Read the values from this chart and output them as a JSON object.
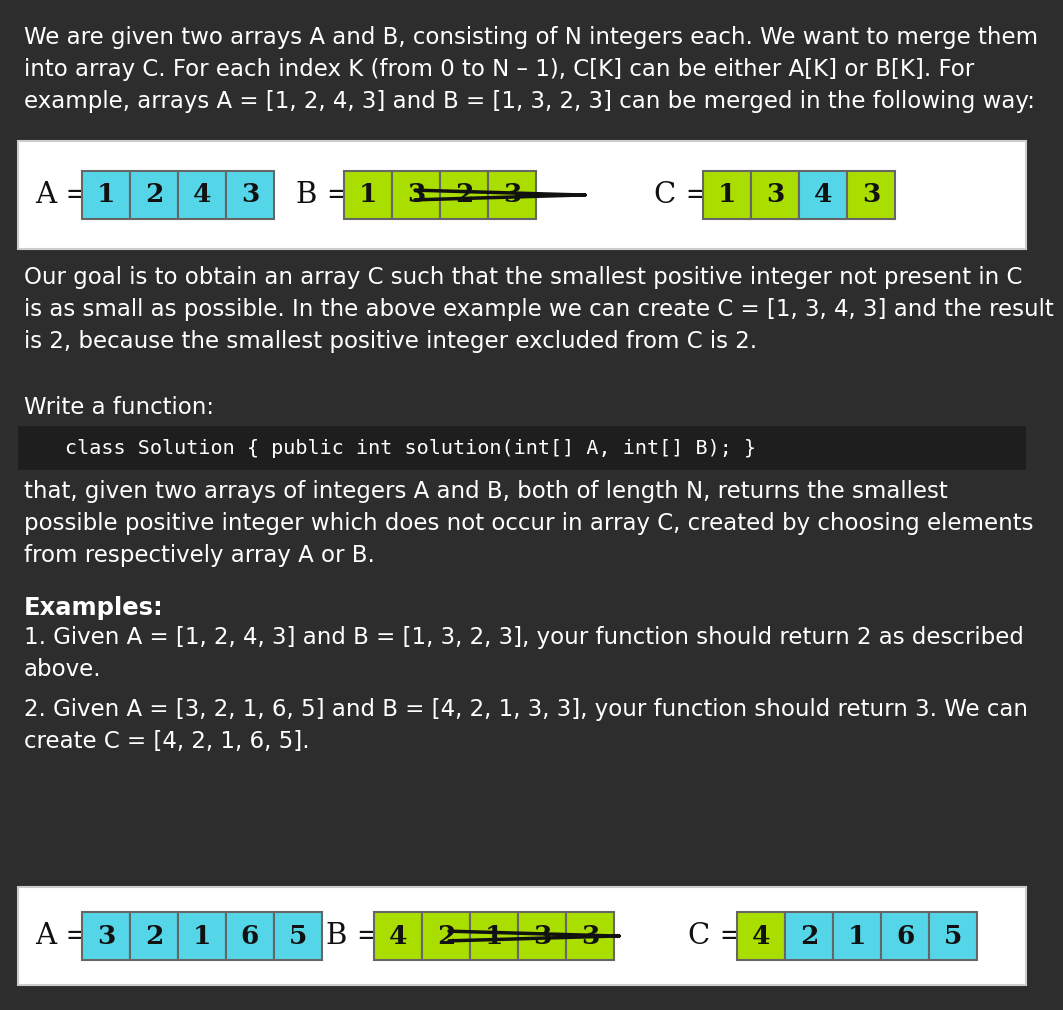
{
  "bg_color": "#2d2d2d",
  "white_box_color": "#ffffff",
  "text_color": "#ffffff",
  "dark_text_color": "#111111",
  "cyan_color": "#55d6e8",
  "green_color": "#aadd00",
  "para1": "We are given two arrays A and B, consisting of N integers each. We want to merge them\ninto array C. For each index K (from 0 to N – 1), C[K] can be either A[K] or B[K]. For\nexample, arrays A = [1, 2, 4, 3] and B = [1, 3, 2, 3] can be merged in the following way:",
  "array1_A": [
    1,
    2,
    4,
    3
  ],
  "array1_A_colors": [
    "cyan",
    "cyan",
    "cyan",
    "cyan"
  ],
  "array1_B": [
    1,
    3,
    2,
    3
  ],
  "array1_B_colors": [
    "green",
    "green",
    "green",
    "green"
  ],
  "array1_C": [
    1,
    3,
    4,
    3
  ],
  "array1_C_colors": [
    "green",
    "green",
    "cyan",
    "green"
  ],
  "para2": "Our goal is to obtain an array C such that the smallest positive integer not present in C\nis as small as possible. In the above example we can create C = [1, 3, 4, 3] and the result\nis 2, because the smallest positive integer excluded from C is 2.",
  "para3": "Write a function:",
  "code_line": "class Solution { public int solution(int[] A, int[] B); }",
  "para4": "that, given two arrays of integers A and B, both of length N, returns the smallest\npossible positive integer which does not occur in array C, created by choosing elements\nfrom respectively array A or B.",
  "para5_bold": "Examples:",
  "para6": "1. Given A = [1, 2, 4, 3] and B = [1, 3, 2, 3], your function should return 2 as described\nabove.",
  "para7": "2. Given A = [3, 2, 1, 6, 5] and B = [4, 2, 1, 3, 3], your function should return 3. We can\ncreate C = [4, 2, 1, 6, 5].",
  "array2_A": [
    3,
    2,
    1,
    6,
    5
  ],
  "array2_A_colors": [
    "cyan",
    "cyan",
    "cyan",
    "cyan",
    "cyan"
  ],
  "array2_B": [
    4,
    2,
    1,
    3,
    3
  ],
  "array2_B_colors": [
    "green",
    "green",
    "green",
    "green",
    "green"
  ],
  "array2_C": [
    4,
    2,
    1,
    6,
    5
  ],
  "array2_C_colors": [
    "green",
    "cyan",
    "cyan",
    "cyan",
    "cyan"
  ]
}
